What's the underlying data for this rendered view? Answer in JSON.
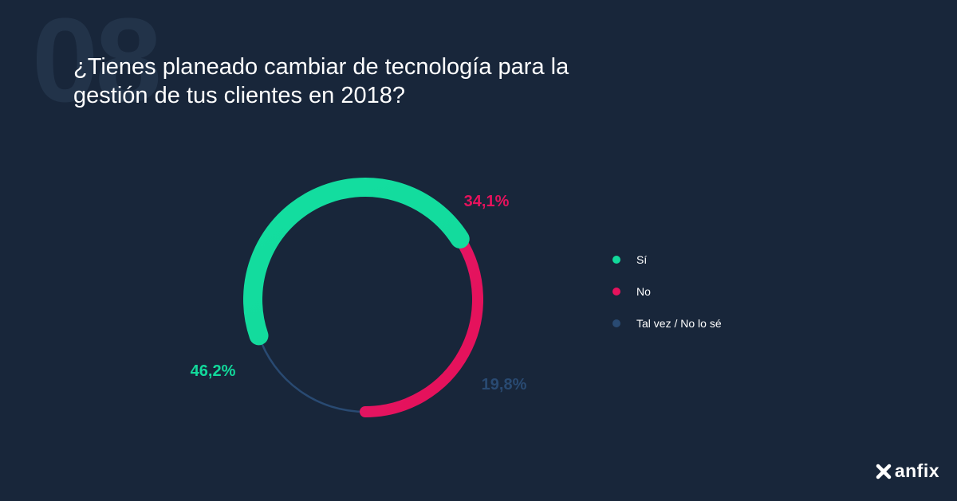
{
  "background_number": "08",
  "title": "¿Tienes planeado cambiar de tecnología para la gestión de tus clientes en 2018?",
  "chart_data": {
    "type": "pie",
    "categories": [
      "Sí",
      "No",
      "Tal vez / No lo sé"
    ],
    "values": [
      46.2,
      34.1,
      19.8
    ],
    "labels": [
      "46,2%",
      "34,1%",
      "19,8%"
    ],
    "colors": [
      "#12d99b",
      "#e5125c",
      "#294a72"
    ],
    "legend_position": "right"
  },
  "logo": {
    "text": "anfix",
    "icon": "x-mark-icon"
  }
}
